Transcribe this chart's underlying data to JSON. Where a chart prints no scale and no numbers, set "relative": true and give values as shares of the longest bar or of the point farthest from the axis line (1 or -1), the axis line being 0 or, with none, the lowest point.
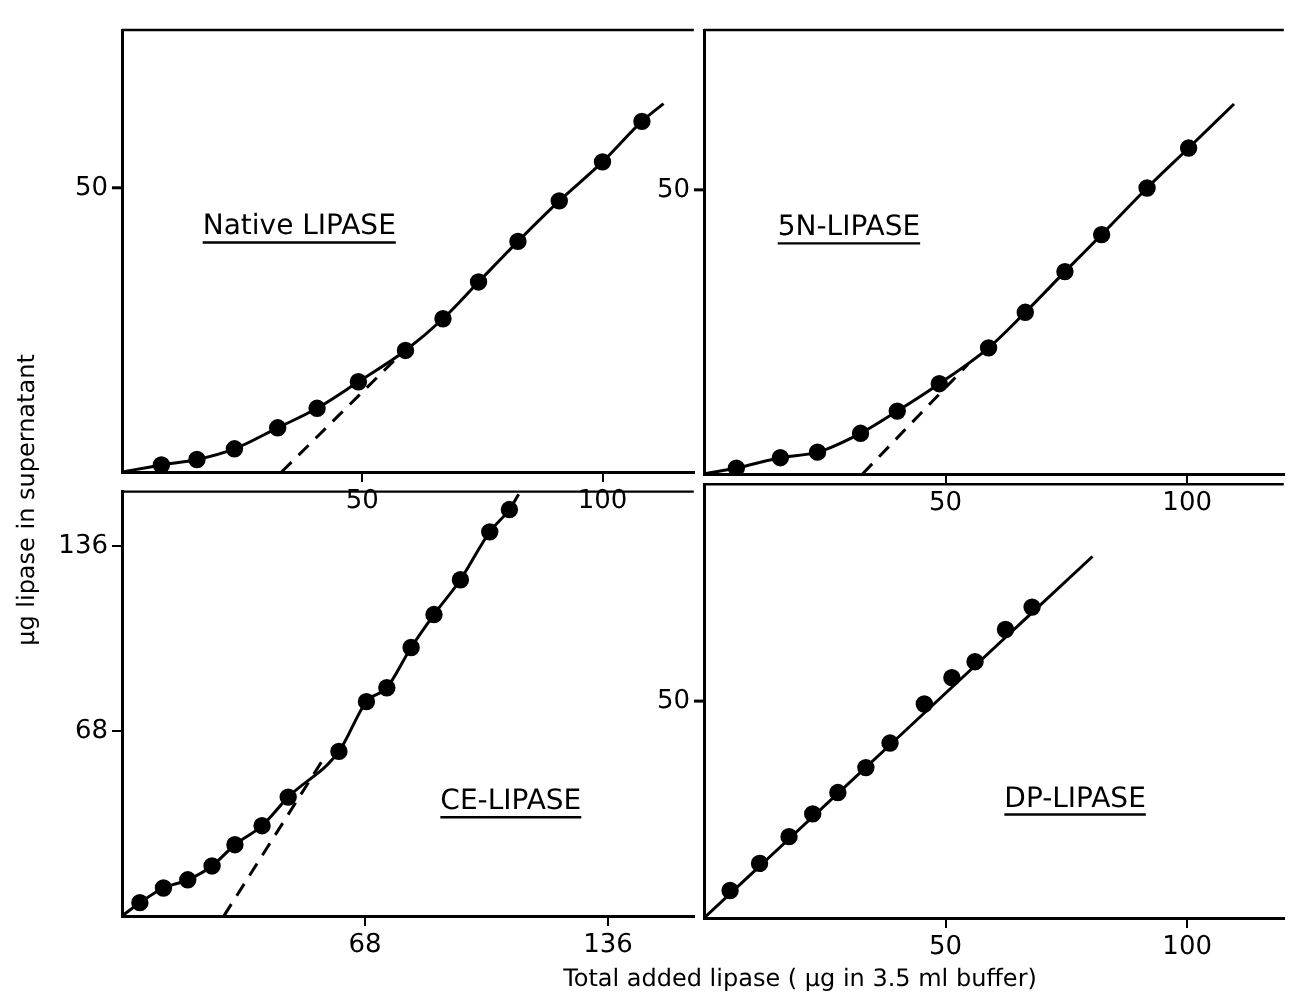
{
  "chart_data": [
    {
      "type": "line",
      "title": "Native LIPASE",
      "ylabel": "µg lipase in supernatant",
      "relative": true,
      "xlim": [
        0,
        119
      ],
      "xticks": [
        50,
        100
      ],
      "grid": false,
      "legend": false,
      "annotations": [
        "50"
      ],
      "series": [
        {
          "type": "line",
          "color": "#000000",
          "marker": "none",
          "line_style": "solid",
          "x": [
            0,
            8.2,
            15.6,
            23.4,
            32.4,
            40.6,
            49.2,
            59,
            66.8,
            74.2,
            82.4,
            91,
            100,
            108.2,
            112.7
          ],
          "values": [
            0,
            0.019,
            0.034,
            0.063,
            0.12,
            0.173,
            0.245,
            0.33,
            0.416,
            0.516,
            0.626,
            0.736,
            0.842,
            0.952,
            1
          ]
        },
        {
          "type": "scatter",
          "color": "#000000",
          "marker": "circle",
          "x": [
            8.2,
            15.6,
            23.4,
            32.4,
            40.6,
            49.2,
            59,
            66.8,
            74.2,
            82.4,
            91,
            100,
            108.2
          ],
          "values": [
            0.019,
            0.034,
            0.063,
            0.12,
            0.173,
            0.245,
            0.33,
            0.416,
            0.516,
            0.626,
            0.736,
            0.842,
            0.952
          ]
        },
        {
          "type": "line",
          "color": "#000000",
          "marker": "none",
          "line_style": "dashed",
          "x": [
            33.2,
            56.6
          ],
          "values": [
            0,
            0.302
          ]
        }
      ]
    },
    {
      "type": "line",
      "title": "5N-LIPASE",
      "relative": true,
      "xlim": [
        0,
        120
      ],
      "xticks": [
        50,
        100
      ],
      "grid": false,
      "legend": false,
      "annotations": [
        "50"
      ],
      "series": [
        {
          "type": "line",
          "color": "#000000",
          "marker": "none",
          "line_style": "solid",
          "x": [
            0,
            6.7,
            15.8,
            23.5,
            32.4,
            40,
            48.7,
            58.9,
            66.5,
            74.7,
            82.3,
            91.7,
            100.3,
            109.7
          ],
          "values": [
            0,
            0.016,
            0.044,
            0.059,
            0.11,
            0.17,
            0.244,
            0.341,
            0.437,
            0.547,
            0.647,
            0.773,
            0.881,
            1
          ]
        },
        {
          "type": "scatter",
          "color": "#000000",
          "marker": "circle",
          "x": [
            6.7,
            15.8,
            23.5,
            32.4,
            40,
            48.7,
            58.9,
            66.5,
            74.7,
            82.3,
            91.7,
            100.3
          ],
          "values": [
            0.016,
            0.044,
            0.059,
            0.11,
            0.17,
            0.244,
            0.341,
            0.437,
            0.547,
            0.647,
            0.773,
            0.881
          ]
        },
        {
          "type": "line",
          "color": "#000000",
          "marker": "none",
          "line_style": "dashed",
          "x": [
            32.8,
            54.6
          ],
          "values": [
            0,
            0.296
          ]
        }
      ]
    },
    {
      "type": "line",
      "title": "CE-LIPASE",
      "xlim": [
        0,
        160
      ],
      "ylim": [
        0,
        156
      ],
      "xticks": [
        68,
        136
      ],
      "yticks": [
        68,
        136
      ],
      "grid": false,
      "legend": false,
      "series": [
        {
          "type": "line",
          "color": "#000000",
          "marker": "none",
          "line_style": "solid",
          "x": [
            0,
            5,
            11.6,
            18.4,
            25.2,
            31.6,
            39.2,
            46.5,
            60.7,
            68.4,
            74.1,
            80.9,
            87.3,
            94.7,
            102.9,
            108.4,
            111
          ],
          "values": [
            0,
            4.9,
            10.3,
            13.3,
            18.4,
            26.2,
            33.2,
            43.7,
            60.5,
            78.8,
            83.9,
            98.7,
            110.8,
            123.6,
            141.2,
            149.4,
            155
          ]
        },
        {
          "type": "scatter",
          "color": "#000000",
          "marker": "circle",
          "x": [
            5,
            11.6,
            18.4,
            25.2,
            31.6,
            39.2,
            46.5,
            60.7,
            68.4,
            74.1,
            80.9,
            87.3,
            94.7,
            102.9,
            108.4
          ],
          "values": [
            4.9,
            10.3,
            13.3,
            18.4,
            26.2,
            33.2,
            43.7,
            60.5,
            78.8,
            83.9,
            98.7,
            110.8,
            123.6,
            141.2,
            149.4
          ]
        },
        {
          "type": "line",
          "color": "#000000",
          "marker": "none",
          "line_style": "dashed",
          "x": [
            28.5,
            56
          ],
          "values": [
            0,
            57
          ]
        }
      ]
    },
    {
      "type": "line",
      "title": "DP-LIPASE",
      "xlabel": "Total added lipase  ( µg in 3.5 ml buffer)",
      "relative": true,
      "xlim": [
        0,
        120
      ],
      "xticks": [
        50,
        100
      ],
      "grid": false,
      "legend": false,
      "annotations": [
        "50"
      ],
      "series": [
        {
          "type": "line",
          "color": "#000000",
          "marker": "none",
          "line_style": "solid",
          "x": [
            0,
            80.4
          ],
          "values": [
            0,
            1
          ]
        },
        {
          "type": "scatter",
          "color": "#000000",
          "marker": "circle",
          "x": [
            5.4,
            11.5,
            17.6,
            22.5,
            27.7,
            33.5,
            38.5,
            45.6,
            51.3,
            56.1,
            62.4,
            67.9
          ],
          "values": [
            0.076,
            0.151,
            0.225,
            0.288,
            0.347,
            0.416,
            0.484,
            0.592,
            0.665,
            0.709,
            0.798,
            0.86
          ]
        }
      ]
    }
  ]
}
